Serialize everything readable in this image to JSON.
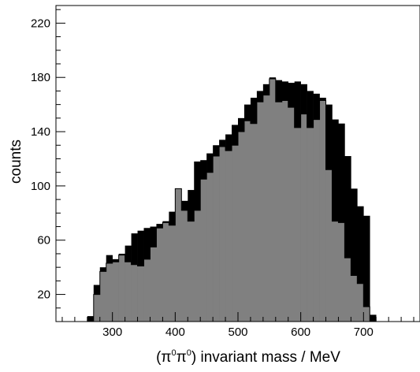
{
  "chart_data": {
    "type": "bar",
    "xlabel_parts": {
      "open": "(",
      "pi": "π",
      "zero": "0",
      "close": ")",
      "rest": " invariant mass / MeV"
    },
    "ylabel": "counts",
    "xlim": [
      210,
      790
    ],
    "ylim": [
      0,
      233
    ],
    "x_ticks": [
      "300",
      "400",
      "500",
      "600",
      "700"
    ],
    "y_ticks": [
      "20",
      "60",
      "100",
      "140",
      "180",
      "220"
    ],
    "bin_width": 10,
    "series": [
      {
        "color": "#000000",
        "x": [
          260,
          270,
          280,
          290,
          300,
          310,
          320,
          330,
          340,
          350,
          360,
          370,
          380,
          390,
          400,
          410,
          420,
          430,
          440,
          450,
          460,
          470,
          480,
          490,
          500,
          510,
          520,
          530,
          540,
          550,
          560,
          570,
          580,
          590,
          600,
          610,
          620,
          630,
          640,
          650,
          660,
          670,
          680,
          690,
          700,
          710
        ],
        "values": [
          4,
          27,
          40,
          49,
          46,
          50,
          56,
          65,
          67,
          69,
          70,
          72,
          74,
          81,
          82,
          89,
          97,
          118,
          119,
          124,
          130,
          134,
          138,
          145,
          150,
          160,
          165,
          170,
          175,
          180,
          178,
          177,
          176,
          177,
          175,
          170,
          168,
          165,
          160,
          149,
          146,
          122,
          98,
          85,
          78,
          5
        ]
      },
      {
        "color": "#808080",
        "x": [
          270,
          280,
          290,
          300,
          310,
          320,
          330,
          340,
          350,
          360,
          370,
          380,
          390,
          400,
          410,
          420,
          430,
          440,
          450,
          460,
          470,
          480,
          490,
          500,
          510,
          520,
          530,
          540,
          550,
          560,
          570,
          580,
          590,
          600,
          610,
          620,
          630,
          640,
          650,
          660,
          670,
          680,
          690,
          700,
          710
        ],
        "values": [
          20,
          37,
          43,
          44,
          49,
          44,
          42,
          41,
          46,
          55,
          69,
          73,
          71,
          98,
          82,
          74,
          82,
          105,
          110,
          122,
          129,
          126,
          130,
          140,
          148,
          146,
          162,
          167,
          179,
          162,
          163,
          158,
          143,
          153,
          143,
          149,
          163,
          112,
          74,
          73,
          47,
          34,
          28,
          11,
          0
        ]
      }
    ]
  }
}
